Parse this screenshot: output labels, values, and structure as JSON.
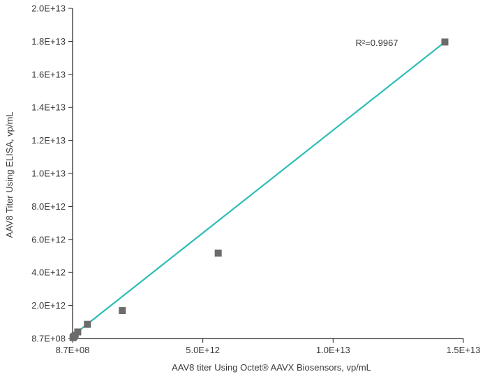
{
  "chart_data": {
    "type": "scatter",
    "xlabel": "AAV8 titer Using Octet® AAVX Biosensors, vp/mL",
    "ylabel": "AAV8 Titer Using ELISA, vp/mL",
    "x_ticks": [
      {
        "value": 870000000,
        "label": "8.7E+08"
      },
      {
        "value": 5000000000000,
        "label": "5.0E+12"
      },
      {
        "value": 10000000000000,
        "label": "1.0E+13"
      },
      {
        "value": 15000000000000,
        "label": "1.5E+13"
      }
    ],
    "y_ticks": [
      {
        "value": 870000000,
        "label": "8.7E+08"
      },
      {
        "value": 2000000000000,
        "label": "2.0E+12"
      },
      {
        "value": 4000000000000,
        "label": "4.0E+12"
      },
      {
        "value": 6000000000000,
        "label": "6.0E+12"
      },
      {
        "value": 8000000000000,
        "label": "8.0E+12"
      },
      {
        "value": 10000000000000,
        "label": "1.0E+13"
      },
      {
        "value": 12000000000000,
        "label": "1.2E+13"
      },
      {
        "value": 14000000000000,
        "label": "1.4E+13"
      },
      {
        "value": 16000000000000,
        "label": "1.6E+13"
      },
      {
        "value": 18000000000000,
        "label": "1.8E+13"
      },
      {
        "value": 20000000000000,
        "label": "2.0E+13"
      }
    ],
    "xlim": [
      870000000,
      15000000000000
    ],
    "ylim": [
      870000000,
      20000000000000
    ],
    "series": [
      {
        "points": [
          {
            "x": 20000000000,
            "y": 50000000000
          },
          {
            "x": 50000000000,
            "y": 120000000000
          },
          {
            "x": 100000000000,
            "y": 200000000000
          },
          {
            "x": 200000000000,
            "y": 400000000000
          },
          {
            "x": 570000000000,
            "y": 860000000000
          },
          {
            "x": 1910000000000,
            "y": 1690000000000
          },
          {
            "x": 5590000000000,
            "y": 5170000000000
          },
          {
            "x": 14290000000000,
            "y": 17960000000000
          }
        ],
        "color": "#6b6b6b",
        "marker": "square"
      }
    ],
    "trendline": {
      "x_start": 870000000,
      "y_start": 170000000000,
      "x_end": 14290000000000,
      "y_end": 17960000000000,
      "color": "#2ebdb6"
    },
    "annotations": [
      {
        "text": "R²=0.9967"
      }
    ],
    "grid": false,
    "legend": "none"
  }
}
